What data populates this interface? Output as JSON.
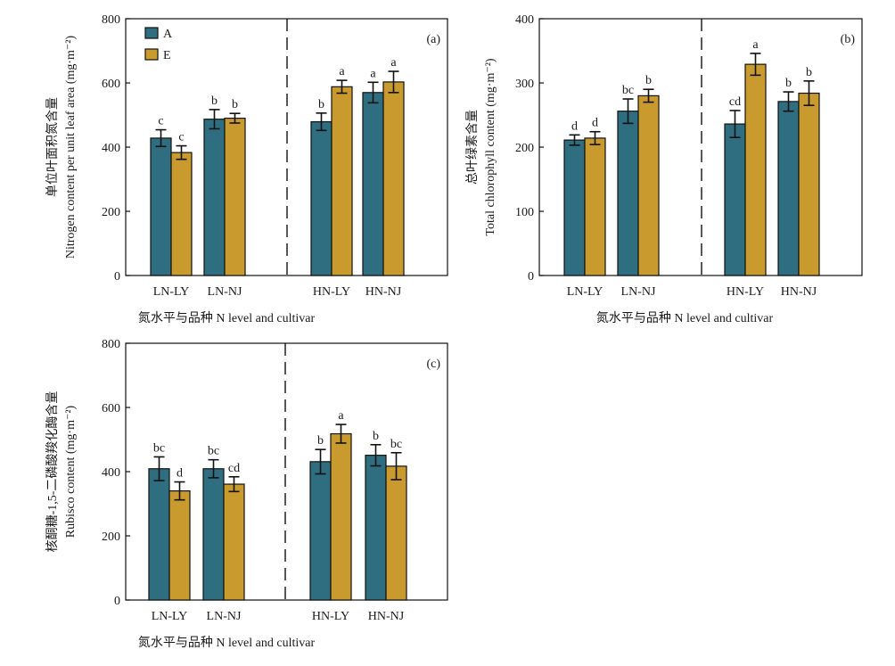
{
  "chart_data": [
    {
      "type": "bar",
      "panel": "(a)",
      "ylabel_cn": "单位叶面积氮含量",
      "ylabel_en": "Nitrogen content per unit leaf area (mg·m⁻²)",
      "xlabel": "氮水平与品种 N level and cultivar",
      "categories": [
        "LN-LY",
        "LN-NJ",
        "HN-LY",
        "HN-NJ"
      ],
      "ylim": [
        0,
        800
      ],
      "yticks": [
        0,
        200,
        400,
        600,
        800
      ],
      "series": [
        {
          "name": "A",
          "color": "#2e6e80",
          "values": [
            428,
            487,
            479,
            570
          ],
          "errors": [
            26,
            30,
            27,
            32
          ],
          "letters": [
            "c",
            "b",
            "b",
            "a"
          ]
        },
        {
          "name": "E",
          "color": "#c99a2e",
          "values": [
            383,
            490,
            588,
            603
          ],
          "errors": [
            21,
            15,
            20,
            33
          ],
          "letters": [
            "c",
            "b",
            "a",
            "a"
          ]
        }
      ],
      "legend": {
        "position": "top-left",
        "entries": [
          "A",
          "E"
        ]
      }
    },
    {
      "type": "bar",
      "panel": "(b)",
      "ylabel_cn": "总叶绿素含量",
      "ylabel_en": "Total chlorophyll content (mg·m⁻²)",
      "xlabel": "氮水平与品种 N level and cultivar",
      "categories": [
        "LN-LY",
        "LN-NJ",
        "HN-LY",
        "HN-NJ"
      ],
      "ylim": [
        0,
        400
      ],
      "yticks": [
        0,
        100,
        200,
        300,
        400
      ],
      "series": [
        {
          "name": "A",
          "color": "#2e6e80",
          "values": [
            211,
            256,
            236,
            271
          ],
          "errors": [
            8,
            19,
            21,
            15
          ],
          "letters": [
            "d",
            "bc",
            "cd",
            "b"
          ]
        },
        {
          "name": "E",
          "color": "#c99a2e",
          "values": [
            214,
            280,
            329,
            284
          ],
          "errors": [
            10,
            10,
            17,
            19
          ],
          "letters": [
            "d",
            "b",
            "a",
            "b"
          ]
        }
      ]
    },
    {
      "type": "bar",
      "panel": "(c)",
      "ylabel_cn": "核酮糖-1,5-二磷酸羧化酶含量",
      "ylabel_en": "Rubisco content (mg·m⁻²)",
      "xlabel": "氮水平与品种 N level and cultivar",
      "categories": [
        "LN-LY",
        "LN-NJ",
        "HN-LY",
        "HN-NJ"
      ],
      "ylim": [
        0,
        800
      ],
      "yticks": [
        0,
        200,
        400,
        600,
        800
      ],
      "series": [
        {
          "name": "A",
          "color": "#2e6e80",
          "values": [
            409,
            409,
            431,
            451
          ],
          "errors": [
            37,
            28,
            38,
            33
          ],
          "letters": [
            "bc",
            "bc",
            "b",
            "b"
          ]
        },
        {
          "name": "E",
          "color": "#c99a2e",
          "values": [
            340,
            361,
            518,
            417
          ],
          "errors": [
            28,
            23,
            29,
            42
          ],
          "letters": [
            "d",
            "cd",
            "a",
            "bc"
          ]
        }
      ]
    }
  ]
}
